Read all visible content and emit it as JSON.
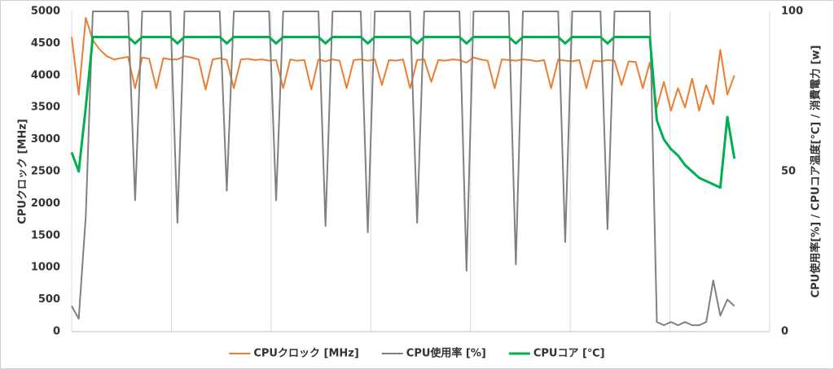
{
  "chart_data": {
    "type": "line",
    "y_label": "CPUクロック [MHz]",
    "y2_label": "CPU使用率[%] / CPUコア温度[℃] / 消費電力 [w]",
    "categories": [
      null,
      null,
      null,
      null,
      null,
      null,
      null,
      null,
      null,
      null,
      null,
      null,
      null,
      null,
      null,
      null,
      null,
      null,
      null,
      null,
      null,
      null,
      null,
      null,
      null,
      null,
      null,
      null,
      null,
      null,
      null,
      null,
      null,
      null,
      null,
      null,
      null,
      null,
      null,
      null,
      null,
      null,
      null,
      null,
      null,
      null,
      null,
      null,
      null,
      null,
      null,
      null,
      null,
      null,
      null,
      null,
      null,
      null,
      null,
      null,
      null,
      null,
      null,
      null,
      null,
      null,
      null,
      null,
      null,
      null,
      null,
      null,
      null,
      null,
      null,
      null,
      null,
      null,
      null,
      null,
      null,
      null,
      null,
      null,
      null,
      null,
      null,
      null,
      null,
      null,
      null,
      null,
      null,
      null,
      null,
      null,
      null,
      null,
      null,
      null
    ],
    "ylim": [
      0,
      5000
    ],
    "yticks": [
      0,
      500,
      1000,
      1500,
      2000,
      2500,
      3000,
      3500,
      4000,
      4500,
      5000
    ],
    "y2lim": [
      0,
      100
    ],
    "y2ticks": [
      0,
      50,
      100
    ],
    "series": [
      {
        "name": "CPUクロック [MHz]",
        "color": "#ed7d31",
        "values": [
          4600,
          3700,
          4900,
          4550,
          4400,
          4300,
          4250,
          4270,
          4290,
          3800,
          4280,
          4260,
          3800,
          4270,
          4250,
          4250,
          4300,
          4280,
          4250,
          3780,
          4250,
          4270,
          4240,
          3800,
          4250,
          4260,
          4240,
          4250,
          4230,
          4240,
          3800,
          4250,
          4230,
          4240,
          3780,
          4250,
          4220,
          4250,
          4230,
          3800,
          4240,
          4250,
          4230,
          4250,
          3850,
          4240,
          4230,
          4250,
          3800,
          4240,
          4250,
          3900,
          4240,
          4230,
          4250,
          4240,
          4200,
          4280,
          4250,
          4230,
          3800,
          4250,
          4240,
          4230,
          4250,
          4240,
          4220,
          4240,
          3800,
          4250,
          4230,
          4220,
          4240,
          3800,
          4230,
          4220,
          4240,
          4230,
          3850,
          4220,
          4210,
          3800,
          4200,
          3500,
          3900,
          3450,
          3800,
          3500,
          3950,
          3450,
          3850,
          3550,
          4400,
          3700,
          4000,
          null,
          null,
          null,
          null,
          null
        ]
      },
      {
        "name": "CPU使用率 [%]",
        "color": "#808080",
        "axis": "y2",
        "values": [
          8,
          4,
          36,
          100,
          100,
          100,
          100,
          100,
          100,
          41,
          100,
          100,
          100,
          100,
          100,
          34,
          100,
          100,
          100,
          100,
          100,
          100,
          44,
          100,
          100,
          100,
          100,
          100,
          100,
          41,
          100,
          100,
          100,
          100,
          100,
          100,
          33,
          100,
          100,
          100,
          100,
          100,
          31,
          100,
          100,
          100,
          100,
          100,
          100,
          34,
          100,
          100,
          100,
          100,
          100,
          100,
          19,
          100,
          100,
          100,
          100,
          100,
          100,
          21,
          100,
          100,
          100,
          100,
          100,
          100,
          28,
          100,
          100,
          100,
          100,
          100,
          32,
          100,
          100,
          100,
          100,
          100,
          100,
          3,
          2,
          3,
          2,
          3,
          2,
          2,
          3,
          16,
          5,
          10,
          8,
          null,
          null,
          null,
          null,
          null
        ]
      },
      {
        "name": "CPUコア [℃]",
        "color": "#00b050",
        "axis": "y2",
        "values": [
          56,
          50,
          70,
          92,
          92,
          92,
          92,
          92,
          92,
          90,
          92,
          92,
          92,
          92,
          92,
          90,
          92,
          92,
          92,
          92,
          92,
          92,
          90,
          92,
          92,
          92,
          92,
          92,
          92,
          90,
          92,
          92,
          92,
          92,
          92,
          92,
          90,
          92,
          92,
          92,
          92,
          92,
          90,
          92,
          92,
          92,
          92,
          92,
          92,
          90,
          92,
          92,
          92,
          92,
          92,
          92,
          90,
          92,
          92,
          92,
          92,
          92,
          92,
          90,
          92,
          92,
          92,
          92,
          92,
          92,
          90,
          92,
          92,
          92,
          92,
          92,
          90,
          92,
          92,
          92,
          92,
          92,
          92,
          66,
          60,
          57,
          55,
          52,
          50,
          48,
          47,
          46,
          45,
          67,
          54,
          null,
          null,
          null,
          null,
          null
        ]
      }
    ]
  }
}
